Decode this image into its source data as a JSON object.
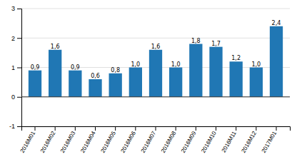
{
  "chart_data": {
    "type": "bar",
    "categories": [
      "2016M01",
      "2016M02",
      "2016M03",
      "2016M04",
      "2016M05",
      "2016M06",
      "2016M07",
      "2016M08",
      "2016M09",
      "2016M10",
      "2016M11",
      "2016M12",
      "2017M01"
    ],
    "values": [
      0.9,
      1.6,
      0.9,
      0.6,
      0.8,
      1.0,
      1.6,
      1.0,
      1.8,
      1.7,
      1.2,
      1.0,
      2.4
    ],
    "value_labels": [
      "0,9",
      "1,6",
      "0,9",
      "0,6",
      "0,8",
      "1,0",
      "1,6",
      "1,0",
      "1,8",
      "1,7",
      "1,2",
      "1,0",
      "2,4"
    ],
    "color": "#2077b4",
    "ylim": [
      -1,
      3
    ],
    "yticks": [
      -1,
      0,
      1,
      2,
      3
    ],
    "grid": true
  }
}
